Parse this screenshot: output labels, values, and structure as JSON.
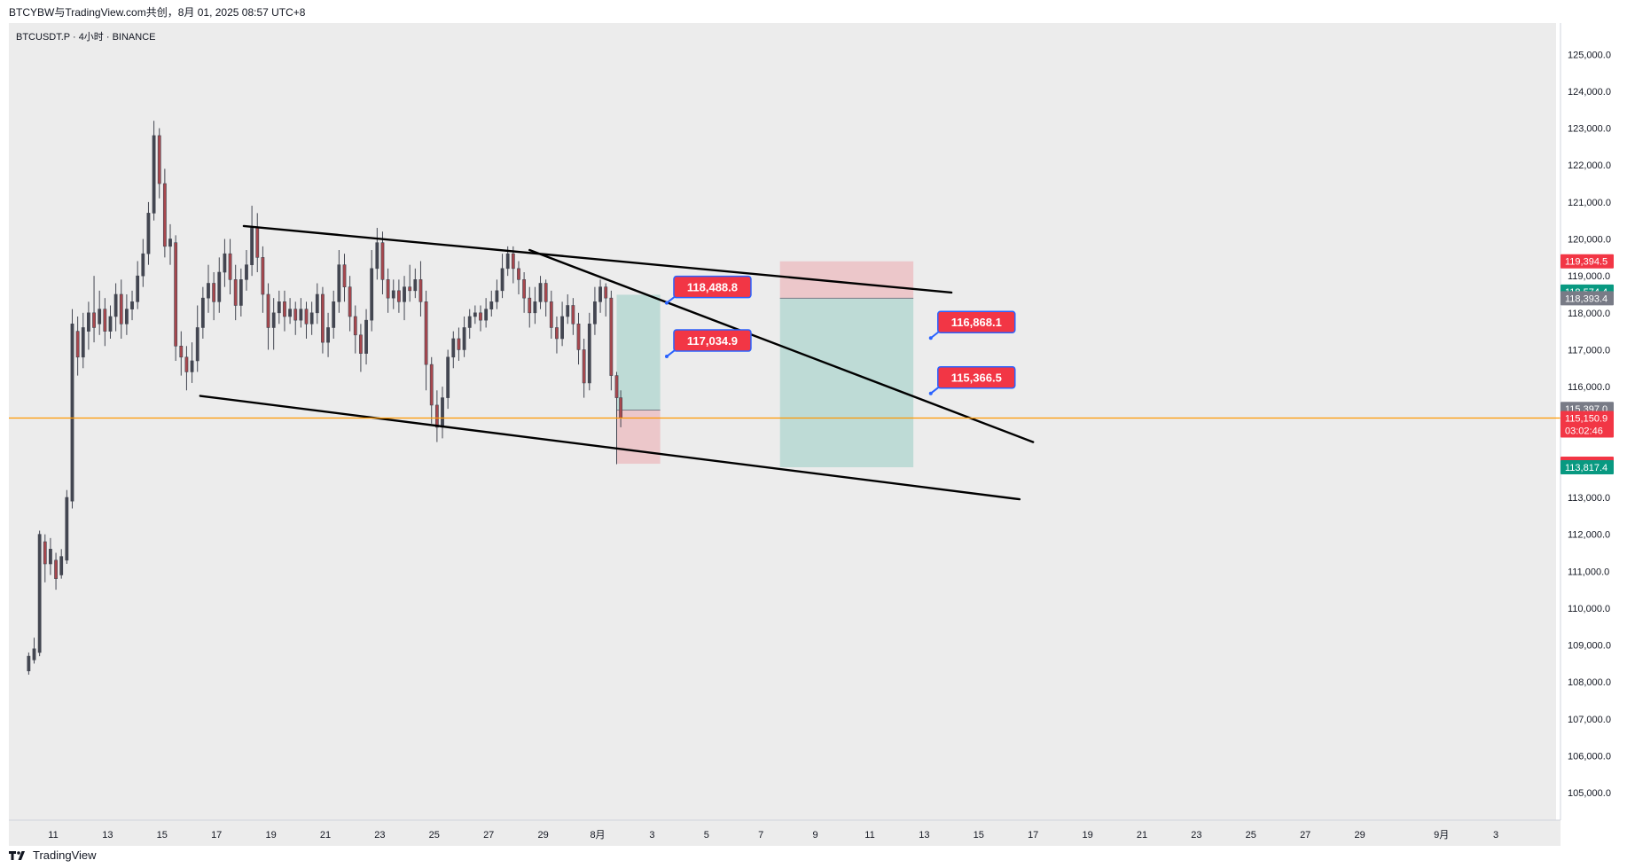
{
  "header": {
    "publish_line": "BTCYBW与TradingView.com共创，8月 01, 2025 08:57 UTC+8"
  },
  "footer": {
    "brand": "TradingView"
  },
  "colors": {
    "bg": "#ececec",
    "up": "#089981",
    "down": "#f23645",
    "candle": "#434651",
    "price_line": "#ff9800",
    "label_red": "#f23645",
    "label_green": "#089981",
    "label_gray": "#787b86"
  },
  "chart_data": {
    "type": "candlestick",
    "symbol_line": "BTCUSDT.P · 4小时 · BINANCE",
    "ylim": [
      104500,
      125800
    ],
    "y_ticks": [
      105000,
      106000,
      107000,
      108000,
      109000,
      110000,
      111000,
      112000,
      113000,
      114000,
      115000,
      116000,
      117000,
      118000,
      119000,
      120000,
      121000,
      122000,
      123000,
      124000,
      125000
    ],
    "y_tick_labels": [
      "105,000.0",
      "106,000.0",
      "107,000.0",
      "108,000.0",
      "109,000.0",
      "110,000.0",
      "111,000.0",
      "112,000.0",
      "113,000.0",
      "114,000.0",
      "115,000.0",
      "116,000.0",
      "117,000.0",
      "118,000.0",
      "119,000.0",
      "120,000.0",
      "121,000.0",
      "122,000.0",
      "123,000.0",
      "124,000.0",
      "125,000.0"
    ],
    "x_ticks": [
      {
        "t": 11,
        "label": "11"
      },
      {
        "t": 13,
        "label": "13"
      },
      {
        "t": 15,
        "label": "15"
      },
      {
        "t": 17,
        "label": "17"
      },
      {
        "t": 19,
        "label": "19"
      },
      {
        "t": 21,
        "label": "21"
      },
      {
        "t": 23,
        "label": "23"
      },
      {
        "t": 25,
        "label": "25"
      },
      {
        "t": 27,
        "label": "27"
      },
      {
        "t": 29,
        "label": "29"
      },
      {
        "t": 31,
        "label": "8月"
      },
      {
        "t": 33,
        "label": "3"
      },
      {
        "t": 35,
        "label": "5"
      },
      {
        "t": 37,
        "label": "7"
      },
      {
        "t": 39,
        "label": "9"
      },
      {
        "t": 41,
        "label": "11"
      },
      {
        "t": 43,
        "label": "13"
      },
      {
        "t": 45,
        "label": "15"
      },
      {
        "t": 47,
        "label": "17"
      },
      {
        "t": 49,
        "label": "19"
      },
      {
        "t": 51,
        "label": "21"
      },
      {
        "t": 53,
        "label": "23"
      },
      {
        "t": 55,
        "label": "25"
      },
      {
        "t": 57,
        "label": "27"
      },
      {
        "t": 59,
        "label": "29"
      },
      {
        "t": 62,
        "label": "9月"
      },
      {
        "t": 64,
        "label": "3"
      }
    ],
    "x_unit": "day index (July 2025 day number, 31 = Aug 1)",
    "candles": [
      [
        10.1,
        108300,
        108700,
        108200,
        108800
      ],
      [
        10.3,
        108600,
        108900,
        108500,
        109200
      ],
      [
        10.5,
        108800,
        112000,
        108700,
        112100
      ],
      [
        10.7,
        111800,
        111200,
        110700,
        112000
      ],
      [
        10.9,
        111200,
        111600,
        110900,
        111900
      ],
      [
        11.1,
        111300,
        110800,
        110500,
        111500
      ],
      [
        11.3,
        110900,
        111400,
        110800,
        111600
      ],
      [
        11.5,
        111300,
        113000,
        111200,
        113200
      ],
      [
        11.7,
        112900,
        117700,
        112700,
        118100
      ],
      [
        11.9,
        117500,
        116800,
        116300,
        117900
      ],
      [
        12.1,
        116800,
        117600,
        116500,
        118000
      ],
      [
        12.3,
        117500,
        118000,
        117000,
        118300
      ],
      [
        12.5,
        118000,
        117600,
        117200,
        119000
      ],
      [
        12.7,
        117700,
        118100,
        117400,
        118600
      ],
      [
        12.9,
        118100,
        117500,
        117100,
        118400
      ],
      [
        13.1,
        117500,
        117900,
        117300,
        118200
      ],
      [
        13.3,
        117900,
        118500,
        117500,
        118800
      ],
      [
        13.5,
        118500,
        117700,
        117300,
        118900
      ],
      [
        13.7,
        117700,
        118100,
        117400,
        118500
      ],
      [
        13.9,
        118100,
        118300,
        117800,
        118600
      ],
      [
        14.1,
        118300,
        119000,
        118100,
        119400
      ],
      [
        14.3,
        119000,
        119600,
        118700,
        120000
      ],
      [
        14.5,
        119600,
        120700,
        119300,
        121000
      ],
      [
        14.7,
        120700,
        122800,
        120500,
        123200
      ],
      [
        14.9,
        122800,
        121500,
        121100,
        123000
      ],
      [
        15.1,
        121500,
        119800,
        119500,
        121900
      ],
      [
        15.3,
        119800,
        120000,
        119300,
        120400
      ],
      [
        15.5,
        119900,
        117100,
        116700,
        120100
      ],
      [
        15.7,
        117100,
        116800,
        116300,
        117500
      ],
      [
        15.9,
        116800,
        116400,
        115900,
        117100
      ],
      [
        16.1,
        116400,
        116700,
        116100,
        117200
      ],
      [
        16.3,
        116700,
        117600,
        116400,
        118200
      ],
      [
        16.5,
        117600,
        118400,
        117300,
        118700
      ],
      [
        16.7,
        118400,
        118800,
        118000,
        119300
      ],
      [
        16.9,
        118800,
        118300,
        117800,
        119100
      ],
      [
        17.1,
        118300,
        119100,
        118000,
        119500
      ],
      [
        17.3,
        119100,
        119600,
        118700,
        120000
      ],
      [
        17.5,
        119600,
        118900,
        118500,
        120000
      ],
      [
        17.7,
        118900,
        118200,
        117800,
        119300
      ],
      [
        17.9,
        118200,
        118900,
        117900,
        119200
      ],
      [
        18.1,
        118900,
        119300,
        118600,
        119700
      ],
      [
        18.3,
        119300,
        120300,
        119000,
        120900
      ],
      [
        18.5,
        120300,
        119500,
        119100,
        120700
      ],
      [
        18.7,
        119500,
        118500,
        118000,
        119800
      ],
      [
        18.9,
        118500,
        117600,
        117000,
        118800
      ],
      [
        19.1,
        117600,
        118000,
        117000,
        118400
      ],
      [
        19.3,
        118000,
        118300,
        117700,
        118600
      ],
      [
        19.5,
        118300,
        117900,
        117500,
        118600
      ],
      [
        19.7,
        117900,
        118100,
        117700,
        118400
      ],
      [
        19.9,
        118100,
        117800,
        117400,
        118300
      ],
      [
        20.1,
        117800,
        118100,
        117600,
        118400
      ],
      [
        20.3,
        118100,
        117700,
        117300,
        118300
      ],
      [
        20.5,
        117700,
        118000,
        117400,
        118300
      ],
      [
        20.7,
        118000,
        118500,
        117700,
        118800
      ],
      [
        20.9,
        118500,
        117200,
        116900,
        118700
      ],
      [
        21.1,
        117200,
        117600,
        116800,
        118000
      ],
      [
        21.3,
        117600,
        118300,
        117300,
        118600
      ],
      [
        21.5,
        118300,
        119300,
        118000,
        119700
      ],
      [
        21.7,
        119300,
        118700,
        118300,
        119600
      ],
      [
        21.9,
        118700,
        117900,
        117500,
        119000
      ],
      [
        22.1,
        117900,
        117400,
        116900,
        118200
      ],
      [
        22.3,
        117400,
        116900,
        116400,
        117700
      ],
      [
        22.5,
        116900,
        117800,
        116600,
        118100
      ],
      [
        22.7,
        117800,
        119200,
        117500,
        119700
      ],
      [
        22.9,
        119200,
        119900,
        118900,
        120300
      ],
      [
        23.1,
        119900,
        118900,
        118500,
        120200
      ],
      [
        23.3,
        118900,
        118400,
        118000,
        119200
      ],
      [
        23.5,
        118400,
        118600,
        118100,
        118900
      ],
      [
        23.7,
        118600,
        118300,
        118000,
        118900
      ],
      [
        23.9,
        118300,
        118700,
        117800,
        119000
      ],
      [
        24.1,
        118700,
        118600,
        118300,
        119300
      ],
      [
        24.3,
        118600,
        118900,
        118400,
        119200
      ],
      [
        24.5,
        118900,
        118300,
        117900,
        119400
      ],
      [
        24.7,
        118300,
        116600,
        115900,
        118600
      ],
      [
        24.9,
        116600,
        115500,
        115000,
        116800
      ],
      [
        25.1,
        115500,
        114900,
        114500,
        115900
      ],
      [
        25.3,
        114900,
        115700,
        114600,
        116000
      ],
      [
        25.5,
        115700,
        116800,
        115400,
        117000
      ],
      [
        25.7,
        116800,
        117300,
        116500,
        117500
      ],
      [
        25.9,
        117300,
        117000,
        116700,
        117600
      ],
      [
        26.1,
        117000,
        117600,
        116800,
        117900
      ],
      [
        26.3,
        117600,
        117900,
        117300,
        118100
      ],
      [
        26.5,
        117900,
        118000,
        117700,
        118200
      ],
      [
        26.7,
        118000,
        117800,
        117500,
        118200
      ],
      [
        26.9,
        117800,
        118100,
        117600,
        118400
      ],
      [
        27.1,
        118100,
        118300,
        117900,
        118600
      ],
      [
        27.3,
        118300,
        118600,
        118100,
        118900
      ],
      [
        27.5,
        118600,
        119200,
        118400,
        119600
      ],
      [
        27.7,
        119200,
        119600,
        119000,
        119800
      ],
      [
        27.9,
        119600,
        119200,
        118800,
        119800
      ],
      [
        28.1,
        119200,
        118900,
        118500,
        119400
      ],
      [
        28.3,
        118900,
        118400,
        118000,
        119100
      ],
      [
        28.5,
        118400,
        118000,
        117600,
        118700
      ],
      [
        28.7,
        118000,
        118300,
        117700,
        118700
      ],
      [
        28.9,
        118300,
        118800,
        118100,
        119000
      ],
      [
        29.1,
        118800,
        118300,
        117900,
        118900
      ],
      [
        29.3,
        118300,
        117600,
        117300,
        118600
      ],
      [
        29.5,
        117600,
        117300,
        116900,
        117900
      ],
      [
        29.7,
        117300,
        117900,
        117100,
        118300
      ],
      [
        29.9,
        117900,
        118200,
        117700,
        118500
      ],
      [
        30.1,
        118200,
        117700,
        117400,
        118400
      ],
      [
        30.3,
        117700,
        117000,
        116600,
        118000
      ],
      [
        30.5,
        117000,
        116100,
        115700,
        117300
      ],
      [
        30.7,
        116100,
        117700,
        115900,
        118000
      ],
      [
        30.9,
        117700,
        118300,
        117400,
        118700
      ],
      [
        31.1,
        118300,
        118700,
        118000,
        118900
      ],
      [
        31.3,
        118700,
        118400,
        117900,
        118800
      ],
      [
        31.5,
        118400,
        116300,
        115900,
        118600
      ],
      [
        31.7,
        116300,
        115700,
        113900,
        116400
      ],
      [
        31.85,
        115700,
        115151,
        114900,
        115900
      ]
    ],
    "trendlines": [
      {
        "t1": 18,
        "p1": 120350,
        "t2": 44,
        "p2": 118550
      },
      {
        "t1": 16.4,
        "p1": 115750,
        "t2": 46.5,
        "p2": 112950
      },
      {
        "t1": 28.5,
        "p1": 119700,
        "t2": 47,
        "p2": 114500
      }
    ],
    "position_boxes": [
      {
        "t1": 31.7,
        "t2": 33.3,
        "entry": 115366.5,
        "target": 118488.8,
        "stop": 113912.7
      },
      {
        "t1": 37.7,
        "t2": 42.6,
        "entry": 118393.4,
        "target": 113817.4,
        "stop": 119394.5
      }
    ],
    "callouts": [
      {
        "label": "118,488.8",
        "t": 33.8,
        "p": 118700
      },
      {
        "label": "117,034.9",
        "t": 33.8,
        "p": 117250
      },
      {
        "label": "116,868.1",
        "t": 43.5,
        "p": 117750
      },
      {
        "label": "115,366.5",
        "t": 43.5,
        "p": 116250
      }
    ],
    "current_price": 115150.9,
    "price_labels": [
      {
        "label": "119,394.5",
        "p": 119394.5,
        "color": "down"
      },
      {
        "label": "118,574.4",
        "p": 118574.4,
        "color": "up"
      },
      {
        "label": "118,393.4",
        "p": 118393.4,
        "color": "gray"
      },
      {
        "label": "115,397.0",
        "p": 115397.0,
        "color": "gray"
      },
      {
        "label": "115,150.9",
        "p": 115150.9,
        "color": "down",
        "sub": "03:02:46"
      },
      {
        "label": "113,912.7",
        "p": 113912.7,
        "color": "down"
      },
      {
        "label": "113,817.4",
        "p": 113817.4,
        "color": "up"
      }
    ]
  }
}
